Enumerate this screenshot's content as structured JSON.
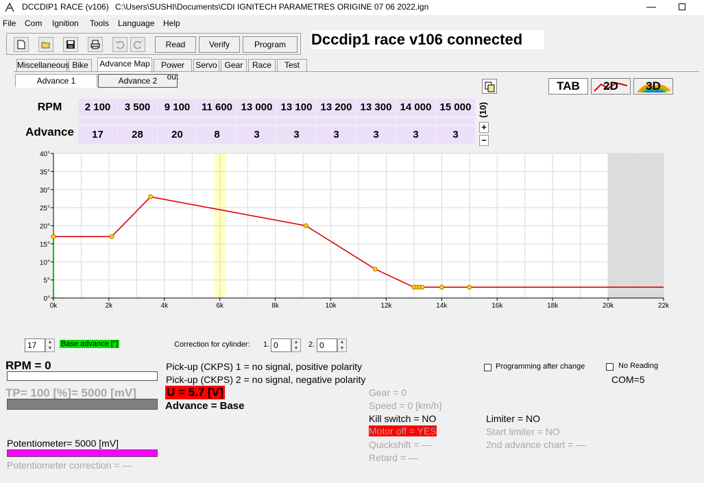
{
  "window": {
    "app_title": "DCCDIP1 RACE (v106)",
    "file_path": "C:\\Users\\SUSHI\\Documents\\CDI IGNITECH PARAMETRES ORIGINE 07 06 2022.ign",
    "minimize": "—"
  },
  "menu": [
    "File",
    "Com",
    "Ignition",
    "Tools",
    "Language",
    "Help"
  ],
  "toolbar": {
    "icons": [
      "new-icon",
      "open-icon",
      "save-icon",
      "print-icon",
      "undo-icon",
      "redo-icon"
    ],
    "read": "Read",
    "verify": "Verify",
    "program": "Program"
  },
  "status_title": "Dccdip1 race v106 connected",
  "tabs": [
    "Miscellaneous",
    "Bike",
    "Advance Map",
    "Power out",
    "Servo",
    "Gear",
    "Race",
    "Test"
  ],
  "active_tab": "Advance Map",
  "subtabs": [
    "Advance 1",
    "Advance 2"
  ],
  "view_buttons": {
    "tab": "TAB",
    "two_d": "2D",
    "three_d": "3D"
  },
  "map": {
    "rpm_header": "RPM",
    "advance_header": "Advance",
    "count_label": "(10)",
    "plus": "+",
    "minus": "−",
    "rpm": [
      "2 100",
      "3 500",
      "9 100",
      "11 600",
      "13 000",
      "13 100",
      "13 200",
      "13 300",
      "14 000",
      "15 000"
    ],
    "advance": [
      "17",
      "28",
      "20",
      "8",
      "3",
      "3",
      "3",
      "3",
      "3",
      "3"
    ]
  },
  "chart_data": {
    "type": "line",
    "x": [
      0,
      2100,
      3500,
      9100,
      11600,
      13000,
      13100,
      13200,
      13300,
      14000,
      15000,
      22000
    ],
    "y": [
      17,
      17,
      28,
      20,
      8,
      3,
      3,
      3,
      3,
      3,
      3,
      3
    ],
    "marker_x": [
      0,
      2100,
      3500,
      9100,
      11600,
      13000,
      13100,
      13200,
      13300,
      14000,
      15000
    ],
    "xlim": [
      0,
      22000
    ],
    "ylim": [
      0,
      40
    ],
    "x_ticks": [
      "0k",
      "2k",
      "4k",
      "6k",
      "8k",
      "10k",
      "12k",
      "14k",
      "16k",
      "18k",
      "20k",
      "22k"
    ],
    "y_ticks": [
      "0°",
      "5°",
      "10°",
      "15°",
      "20°",
      "25°",
      "30°",
      "35°",
      "40°"
    ],
    "highlight_band_x": [
      5800,
      6200
    ],
    "shaded_region_x": [
      20000,
      22000
    ],
    "line_color": "#e00000",
    "marker_color": "#ffd700",
    "grid": true
  },
  "controls": {
    "base_value": "17",
    "base_label": "Base advance [°]",
    "correction_label": "Correction for cylinder:",
    "cyl1_label": "1.",
    "cyl1_value": "0",
    "cyl2_label": "2.",
    "cyl2_value": "0"
  },
  "status": {
    "rpm": "RPM = 0",
    "tp": "TP= 100 [%]= 5000 [mV]",
    "potentiometer": "Potentiometer= 5000 [mV]",
    "pot_correction": "Potentiometer correction = —",
    "pickup1": "Pick-up (CKPS) 1 = no signal, positive polarity",
    "pickup2": "Pick-up (CKPS) 2 = no signal, negative polarity",
    "voltage": "U = 5.7 [V]",
    "advance": "Advance = Base",
    "gear": "Gear = 0",
    "speed": "Speed = 0 [km/h]",
    "kill_switch": "Kill switch = NO",
    "motor_off": "Motor off = YES",
    "quickshift": "Quickshift = —",
    "retard": "Retard = —",
    "limiter": "Limiter = NO",
    "start_limiter": "Start limiter = NO",
    "second_chart": "2nd advance chart = —",
    "programming_after_change": "Programming after change",
    "no_reading": "No Reading",
    "com": "COM=5"
  },
  "colors": {
    "cell_bg": "#ece0f8",
    "base_label_bg": "#00e000",
    "voltage_bg": "#ff0000",
    "motor_off_bg": "#ff0000",
    "pot_bar": "#ff00ff",
    "tp_bar": "#808080"
  }
}
